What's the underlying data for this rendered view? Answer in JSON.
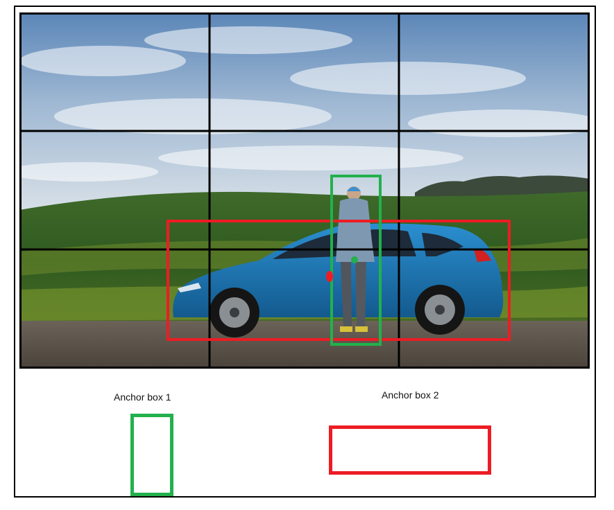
{
  "anchor_box_1": {
    "label": "Anchor box 1",
    "color": "#22b14c"
  },
  "anchor_box_2": {
    "label": "Anchor box 2",
    "color": "#ed1c24"
  },
  "grid": {
    "rows": 3,
    "cols": 3,
    "line_color": "#000000"
  },
  "scene_objects": [
    "person",
    "car"
  ],
  "icons": [
    "person-figure",
    "car-figure",
    "center-point-marker"
  ]
}
